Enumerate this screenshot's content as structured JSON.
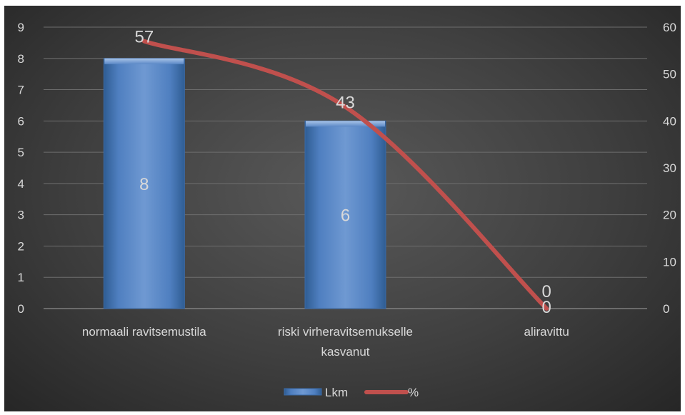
{
  "chart_data": {
    "type": "bar",
    "categories": [
      "normaali ravitsemustila",
      "riski virheravitsemukselle kasvanut",
      "aliravittu"
    ],
    "category_label_lines": [
      [
        "normaali ravitsemustila"
      ],
      [
        "riski virheravitsemukselle",
        "kasvanut"
      ],
      [
        "aliravittu"
      ]
    ],
    "series": [
      {
        "name": "Lkm",
        "type": "bar",
        "axis": "left",
        "values": [
          8,
          6,
          0
        ],
        "data_labels": [
          "8",
          "6",
          "0"
        ],
        "color": "#4f81bd"
      },
      {
        "name": "%",
        "type": "line",
        "axis": "right",
        "values": [
          57,
          43,
          0
        ],
        "data_labels": [
          "57",
          "43",
          "0"
        ],
        "color": "#c0504d"
      }
    ],
    "y_left": {
      "min": 0,
      "max": 9,
      "ticks": [
        "0",
        "1",
        "2",
        "3",
        "4",
        "5",
        "6",
        "7",
        "8",
        "9"
      ]
    },
    "y_right": {
      "min": 0,
      "max": 60,
      "ticks": [
        "0",
        "10",
        "20",
        "30",
        "40",
        "50",
        "60"
      ]
    },
    "title": "",
    "xlabel": "",
    "ylabel": "",
    "grid": true,
    "legend_position": "bottom",
    "colors": {
      "background_center": "#595959",
      "background_edge": "#262626",
      "grid": "#6e6e6e",
      "text": "#d9d9d9"
    }
  }
}
